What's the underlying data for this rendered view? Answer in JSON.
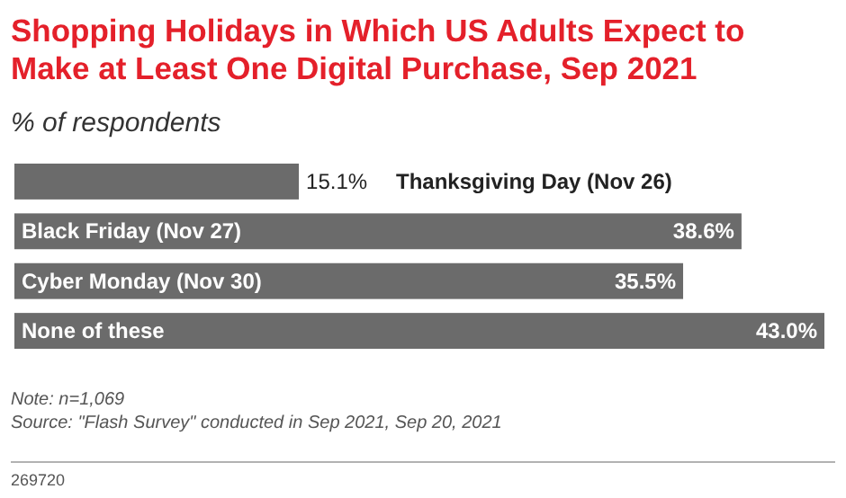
{
  "chart_data": {
    "type": "bar",
    "orientation": "horizontal",
    "xlim": [
      0,
      43
    ],
    "title": "Shopping Holidays in Which US Adults Expect to Make at Least One Digital Purchase, Sep 2021",
    "subtitle": "% of respondents",
    "categories": [
      "Thanksgiving Day (Nov 26)",
      "Black Friday (Nov 27)",
      "Cyber Monday (Nov 30)",
      "None of these"
    ],
    "values": [
      15.1,
      38.6,
      35.5,
      43.0
    ],
    "color": "#6b6b6b",
    "data_labels": true,
    "value_labels": [
      "15.1%",
      "38.6%",
      "35.5%",
      "43.0%"
    ],
    "annotations": [
      "Note: n=1,069",
      "Source: \"Flash Survey\" conducted in Sep 2021, Sep 20, 2021",
      "269720"
    ]
  }
}
